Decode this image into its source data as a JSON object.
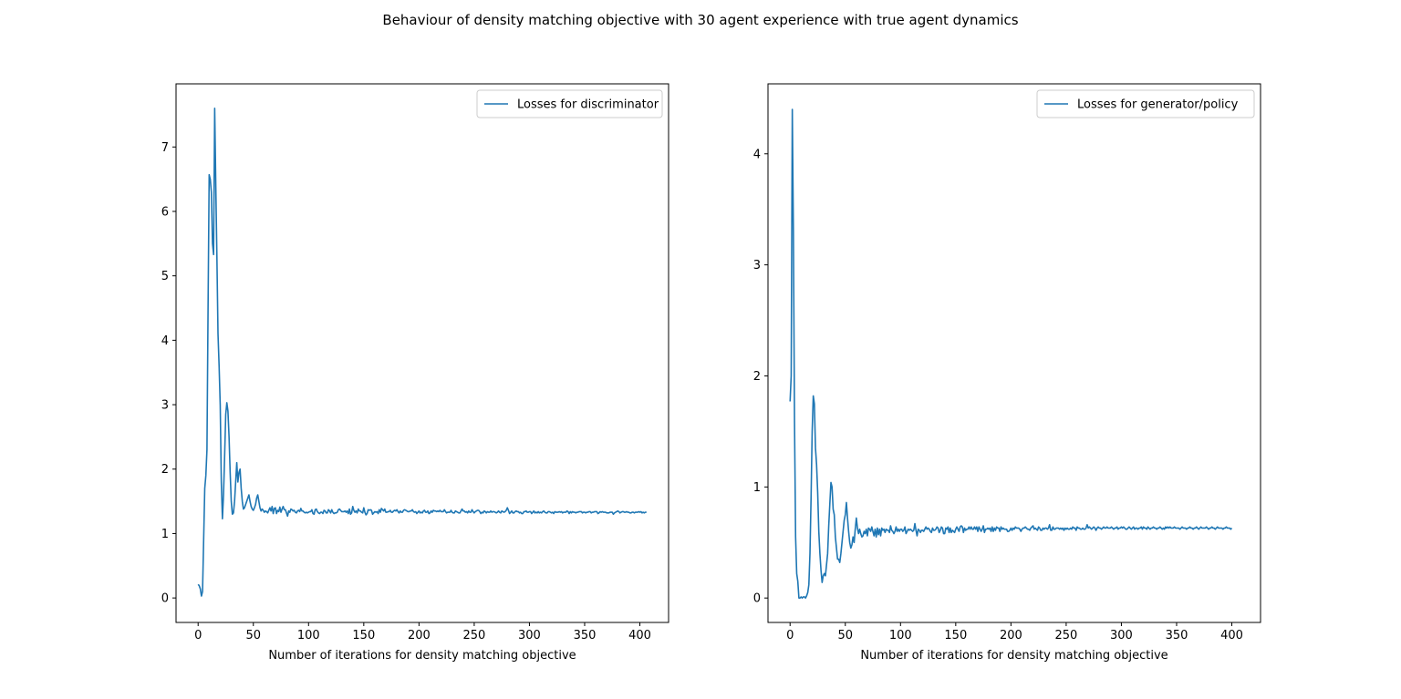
{
  "figure": {
    "suptitle": "Behaviour of density matching objective with 30 agent experience with true agent dynamics"
  },
  "chart_data": [
    {
      "type": "line",
      "title": "",
      "xlabel": "Number of iterations for density matching objective",
      "ylabel": "",
      "xlim": [
        -20,
        426
      ],
      "ylim": [
        -0.38,
        7.98
      ],
      "xticks": [
        0,
        50,
        100,
        150,
        200,
        250,
        300,
        350,
        400
      ],
      "yticks": [
        0,
        1,
        2,
        3,
        4,
        5,
        6,
        7
      ],
      "grid": false,
      "legend": "upper right",
      "series": [
        {
          "name": "Losses for discriminator",
          "color": "#1f77b4",
          "x_start": 0,
          "x_step": 1,
          "values": [
            0.21,
            0.19,
            0.14,
            0.03,
            0.1,
            0.9,
            1.7,
            1.9,
            2.3,
            4.5,
            6.57,
            6.5,
            6.3,
            5.5,
            5.33,
            7.6,
            6.4,
            5.3,
            4.1,
            3.6,
            3.0,
            1.8,
            1.23,
            1.6,
            2.2,
            2.85,
            3.03,
            2.9,
            2.5,
            1.95,
            1.5,
            1.3,
            1.32,
            1.5,
            1.8,
            2.1,
            1.8,
            1.95,
            2.0,
            1.7,
            1.5,
            1.38,
            1.4,
            1.45,
            1.5,
            1.55,
            1.6,
            1.5,
            1.42,
            1.38,
            1.36,
            1.4,
            1.45,
            1.55,
            1.6,
            1.5,
            1.4,
            1.35,
            1.38,
            1.36,
            1.33,
            1.35,
            1.34,
            1.32,
            1.36,
            1.4,
            1.35,
            1.42,
            1.31,
            1.39,
            1.4,
            1.31,
            1.36,
            1.34,
            1.41,
            1.33,
            1.38,
            1.42,
            1.37,
            1.37,
            1.32,
            1.27,
            1.35,
            1.33,
            1.38,
            1.37,
            1.35,
            1.36,
            1.33,
            1.32,
            1.35,
            1.36,
            1.34,
            1.39,
            1.35,
            1.35,
            1.33,
            1.32,
            1.33,
            1.32,
            1.33,
            1.34,
            1.34,
            1.37,
            1.31,
            1.3,
            1.37,
            1.38,
            1.34,
            1.32,
            1.31,
            1.33,
            1.33,
            1.31,
            1.36,
            1.35,
            1.32,
            1.32,
            1.37,
            1.35,
            1.32,
            1.37,
            1.33,
            1.31,
            1.32,
            1.32,
            1.33,
            1.37,
            1.38,
            1.36,
            1.34,
            1.34,
            1.34,
            1.35,
            1.33,
            1.35,
            1.31,
            1.38,
            1.3,
            1.32,
            1.42,
            1.36,
            1.33,
            1.35,
            1.32,
            1.38,
            1.35,
            1.35,
            1.33,
            1.32,
            1.4,
            1.33,
            1.29,
            1.31,
            1.37,
            1.36,
            1.37,
            1.36,
            1.3,
            1.32,
            1.34,
            1.33,
            1.34,
            1.31,
            1.37,
            1.33,
            1.39,
            1.37,
            1.35,
            1.38,
            1.33,
            1.33,
            1.34,
            1.34,
            1.36,
            1.33,
            1.33,
            1.35,
            1.36,
            1.35,
            1.37,
            1.34,
            1.32,
            1.35,
            1.33,
            1.33,
            1.36,
            1.37,
            1.36,
            1.35,
            1.34,
            1.34,
            1.35,
            1.35,
            1.37,
            1.34,
            1.33,
            1.34,
            1.31,
            1.33,
            1.35,
            1.32,
            1.33,
            1.32,
            1.35,
            1.36,
            1.33,
            1.33,
            1.35,
            1.31,
            1.32,
            1.35,
            1.33,
            1.36,
            1.35,
            1.35,
            1.34,
            1.35,
            1.34,
            1.36,
            1.34,
            1.34,
            1.34,
            1.37,
            1.34,
            1.32,
            1.33,
            1.33,
            1.33,
            1.36,
            1.33,
            1.32,
            1.32,
            1.35,
            1.34,
            1.33,
            1.32,
            1.32,
            1.35,
            1.38,
            1.35,
            1.35,
            1.33,
            1.34,
            1.32,
            1.35,
            1.33,
            1.33,
            1.37,
            1.34,
            1.32,
            1.34,
            1.35,
            1.36,
            1.36,
            1.34,
            1.31,
            1.33,
            1.32,
            1.35,
            1.34,
            1.32,
            1.34,
            1.33,
            1.33,
            1.35,
            1.33,
            1.34,
            1.34,
            1.33,
            1.32,
            1.33,
            1.35,
            1.33,
            1.32,
            1.35,
            1.34,
            1.33,
            1.34,
            1.36,
            1.4,
            1.36,
            1.31,
            1.33,
            1.35,
            1.32,
            1.32,
            1.34,
            1.35,
            1.34,
            1.34,
            1.32,
            1.33,
            1.31,
            1.31,
            1.34,
            1.34,
            1.35,
            1.33,
            1.33,
            1.34,
            1.34,
            1.31,
            1.33,
            1.35,
            1.32,
            1.33,
            1.32,
            1.34,
            1.32,
            1.33,
            1.32,
            1.34,
            1.35,
            1.33,
            1.32,
            1.32,
            1.34,
            1.34,
            1.33,
            1.32,
            1.33,
            1.31,
            1.34,
            1.33,
            1.33,
            1.33,
            1.34,
            1.33,
            1.34,
            1.32,
            1.33,
            1.33,
            1.33,
            1.35,
            1.34,
            1.31,
            1.34,
            1.32,
            1.34,
            1.33,
            1.33,
            1.32,
            1.33,
            1.33,
            1.34,
            1.34,
            1.34,
            1.32,
            1.33,
            1.33,
            1.32,
            1.33,
            1.33,
            1.34,
            1.34,
            1.32,
            1.33,
            1.33,
            1.34,
            1.34,
            1.34,
            1.31,
            1.32,
            1.34,
            1.33,
            1.34,
            1.33,
            1.33,
            1.33,
            1.32,
            1.32,
            1.32,
            1.33,
            1.33,
            1.33,
            1.3,
            1.32,
            1.33,
            1.34,
            1.35,
            1.34,
            1.32,
            1.33,
            1.34,
            1.34,
            1.33,
            1.33,
            1.34,
            1.33,
            1.33,
            1.32,
            1.32,
            1.33,
            1.33,
            1.32,
            1.33,
            1.33,
            1.33,
            1.34,
            1.33,
            1.34,
            1.32,
            1.33,
            1.32,
            1.33,
            1.33
          ]
        }
      ]
    },
    {
      "type": "line",
      "title": "",
      "xlabel": "Number of iterations for density matching objective",
      "ylabel": "",
      "xlim": [
        -20,
        426
      ],
      "ylim": [
        -0.22,
        4.63
      ],
      "xticks": [
        0,
        50,
        100,
        150,
        200,
        250,
        300,
        350,
        400
      ],
      "yticks": [
        0,
        1,
        2,
        3,
        4
      ],
      "grid": false,
      "legend": "upper right",
      "series": [
        {
          "name": "Losses for generator/policy",
          "color": "#1f77b4",
          "x_start": 0,
          "x_step": 1,
          "values": [
            1.77,
            2.0,
            4.4,
            3.3,
            1.6,
            0.55,
            0.22,
            0.15,
            0.0,
            0.0,
            0.01,
            0.0,
            0.01,
            0.01,
            0.0,
            0.02,
            0.05,
            0.12,
            0.4,
            0.9,
            1.5,
            1.82,
            1.75,
            1.35,
            1.2,
            0.95,
            0.6,
            0.4,
            0.25,
            0.14,
            0.2,
            0.22,
            0.2,
            0.3,
            0.4,
            0.65,
            0.85,
            1.04,
            1.0,
            0.8,
            0.75,
            0.55,
            0.45,
            0.35,
            0.35,
            0.32,
            0.4,
            0.5,
            0.6,
            0.7,
            0.75,
            0.86,
            0.72,
            0.6,
            0.5,
            0.45,
            0.48,
            0.55,
            0.5,
            0.62,
            0.72,
            0.63,
            0.58,
            0.62,
            0.58,
            0.55,
            0.56,
            0.6,
            0.58,
            0.62,
            0.56,
            0.63,
            0.62,
            0.6,
            0.64,
            0.6,
            0.56,
            0.62,
            0.55,
            0.63,
            0.57,
            0.62,
            0.56,
            0.63,
            0.61,
            0.62,
            0.59,
            0.62,
            0.61,
            0.61,
            0.59,
            0.65,
            0.61,
            0.6,
            0.58,
            0.6,
            0.64,
            0.6,
            0.62,
            0.6,
            0.62,
            0.62,
            0.6,
            0.61,
            0.64,
            0.58,
            0.6,
            0.62,
            0.61,
            0.62,
            0.61,
            0.6,
            0.61,
            0.67,
            0.61,
            0.56,
            0.62,
            0.61,
            0.59,
            0.61,
            0.61,
            0.6,
            0.62,
            0.64,
            0.62,
            0.63,
            0.62,
            0.6,
            0.59,
            0.63,
            0.61,
            0.61,
            0.62,
            0.64,
            0.63,
            0.59,
            0.61,
            0.64,
            0.63,
            0.58,
            0.58,
            0.63,
            0.62,
            0.64,
            0.59,
            0.63,
            0.59,
            0.61,
            0.6,
            0.59,
            0.62,
            0.64,
            0.62,
            0.6,
            0.64,
            0.65,
            0.64,
            0.59,
            0.63,
            0.61,
            0.62,
            0.62,
            0.64,
            0.62,
            0.64,
            0.62,
            0.62,
            0.64,
            0.62,
            0.64,
            0.6,
            0.64,
            0.62,
            0.6,
            0.62,
            0.65,
            0.59,
            0.62,
            0.62,
            0.63,
            0.62,
            0.63,
            0.6,
            0.64,
            0.6,
            0.63,
            0.61,
            0.64,
            0.63,
            0.63,
            0.6,
            0.64,
            0.62,
            0.63,
            0.62,
            0.62,
            0.62,
            0.6,
            0.6,
            0.61,
            0.63,
            0.61,
            0.63,
            0.62,
            0.64,
            0.63,
            0.63,
            0.63,
            0.62,
            0.6,
            0.62,
            0.63,
            0.63,
            0.64,
            0.63,
            0.62,
            0.62,
            0.61,
            0.63,
            0.64,
            0.65,
            0.62,
            0.63,
            0.62,
            0.61,
            0.64,
            0.63,
            0.61,
            0.61,
            0.63,
            0.62,
            0.63,
            0.63,
            0.62,
            0.63,
            0.66,
            0.61,
            0.61,
            0.64,
            0.62,
            0.62,
            0.63,
            0.63,
            0.63,
            0.62,
            0.63,
            0.62,
            0.63,
            0.61,
            0.63,
            0.62,
            0.63,
            0.62,
            0.62,
            0.63,
            0.62,
            0.64,
            0.63,
            0.63,
            0.61,
            0.64,
            0.63,
            0.63,
            0.62,
            0.62,
            0.63,
            0.62,
            0.62,
            0.63,
            0.66,
            0.63,
            0.64,
            0.63,
            0.62,
            0.63,
            0.64,
            0.63,
            0.61,
            0.63,
            0.64,
            0.63,
            0.63,
            0.62,
            0.63,
            0.64,
            0.63,
            0.63,
            0.64,
            0.63,
            0.63,
            0.63,
            0.64,
            0.63,
            0.62,
            0.63,
            0.63,
            0.64,
            0.62,
            0.63,
            0.63,
            0.64,
            0.63,
            0.64,
            0.63,
            0.62,
            0.62,
            0.63,
            0.64,
            0.63,
            0.62,
            0.63,
            0.64,
            0.62,
            0.63,
            0.63,
            0.62,
            0.63,
            0.63,
            0.64,
            0.62,
            0.64,
            0.63,
            0.63,
            0.62,
            0.64,
            0.63,
            0.62,
            0.63,
            0.63,
            0.64,
            0.63,
            0.63,
            0.62,
            0.63,
            0.63,
            0.64,
            0.63,
            0.62,
            0.63,
            0.62,
            0.64,
            0.63,
            0.64,
            0.63,
            0.64,
            0.63,
            0.63,
            0.63,
            0.64,
            0.63,
            0.63,
            0.63,
            0.63,
            0.62,
            0.63,
            0.64,
            0.63,
            0.63,
            0.63,
            0.62,
            0.63,
            0.63,
            0.64,
            0.63,
            0.63,
            0.62,
            0.63,
            0.63,
            0.64,
            0.63,
            0.62,
            0.63,
            0.64,
            0.63,
            0.63,
            0.63,
            0.63,
            0.64,
            0.63,
            0.62,
            0.63,
            0.63,
            0.64,
            0.63,
            0.63,
            0.62,
            0.63,
            0.64,
            0.63,
            0.63,
            0.63,
            0.63,
            0.62,
            0.63,
            0.63,
            0.64,
            0.63,
            0.63,
            0.63,
            0.62,
            0.63
          ]
        }
      ]
    }
  ]
}
